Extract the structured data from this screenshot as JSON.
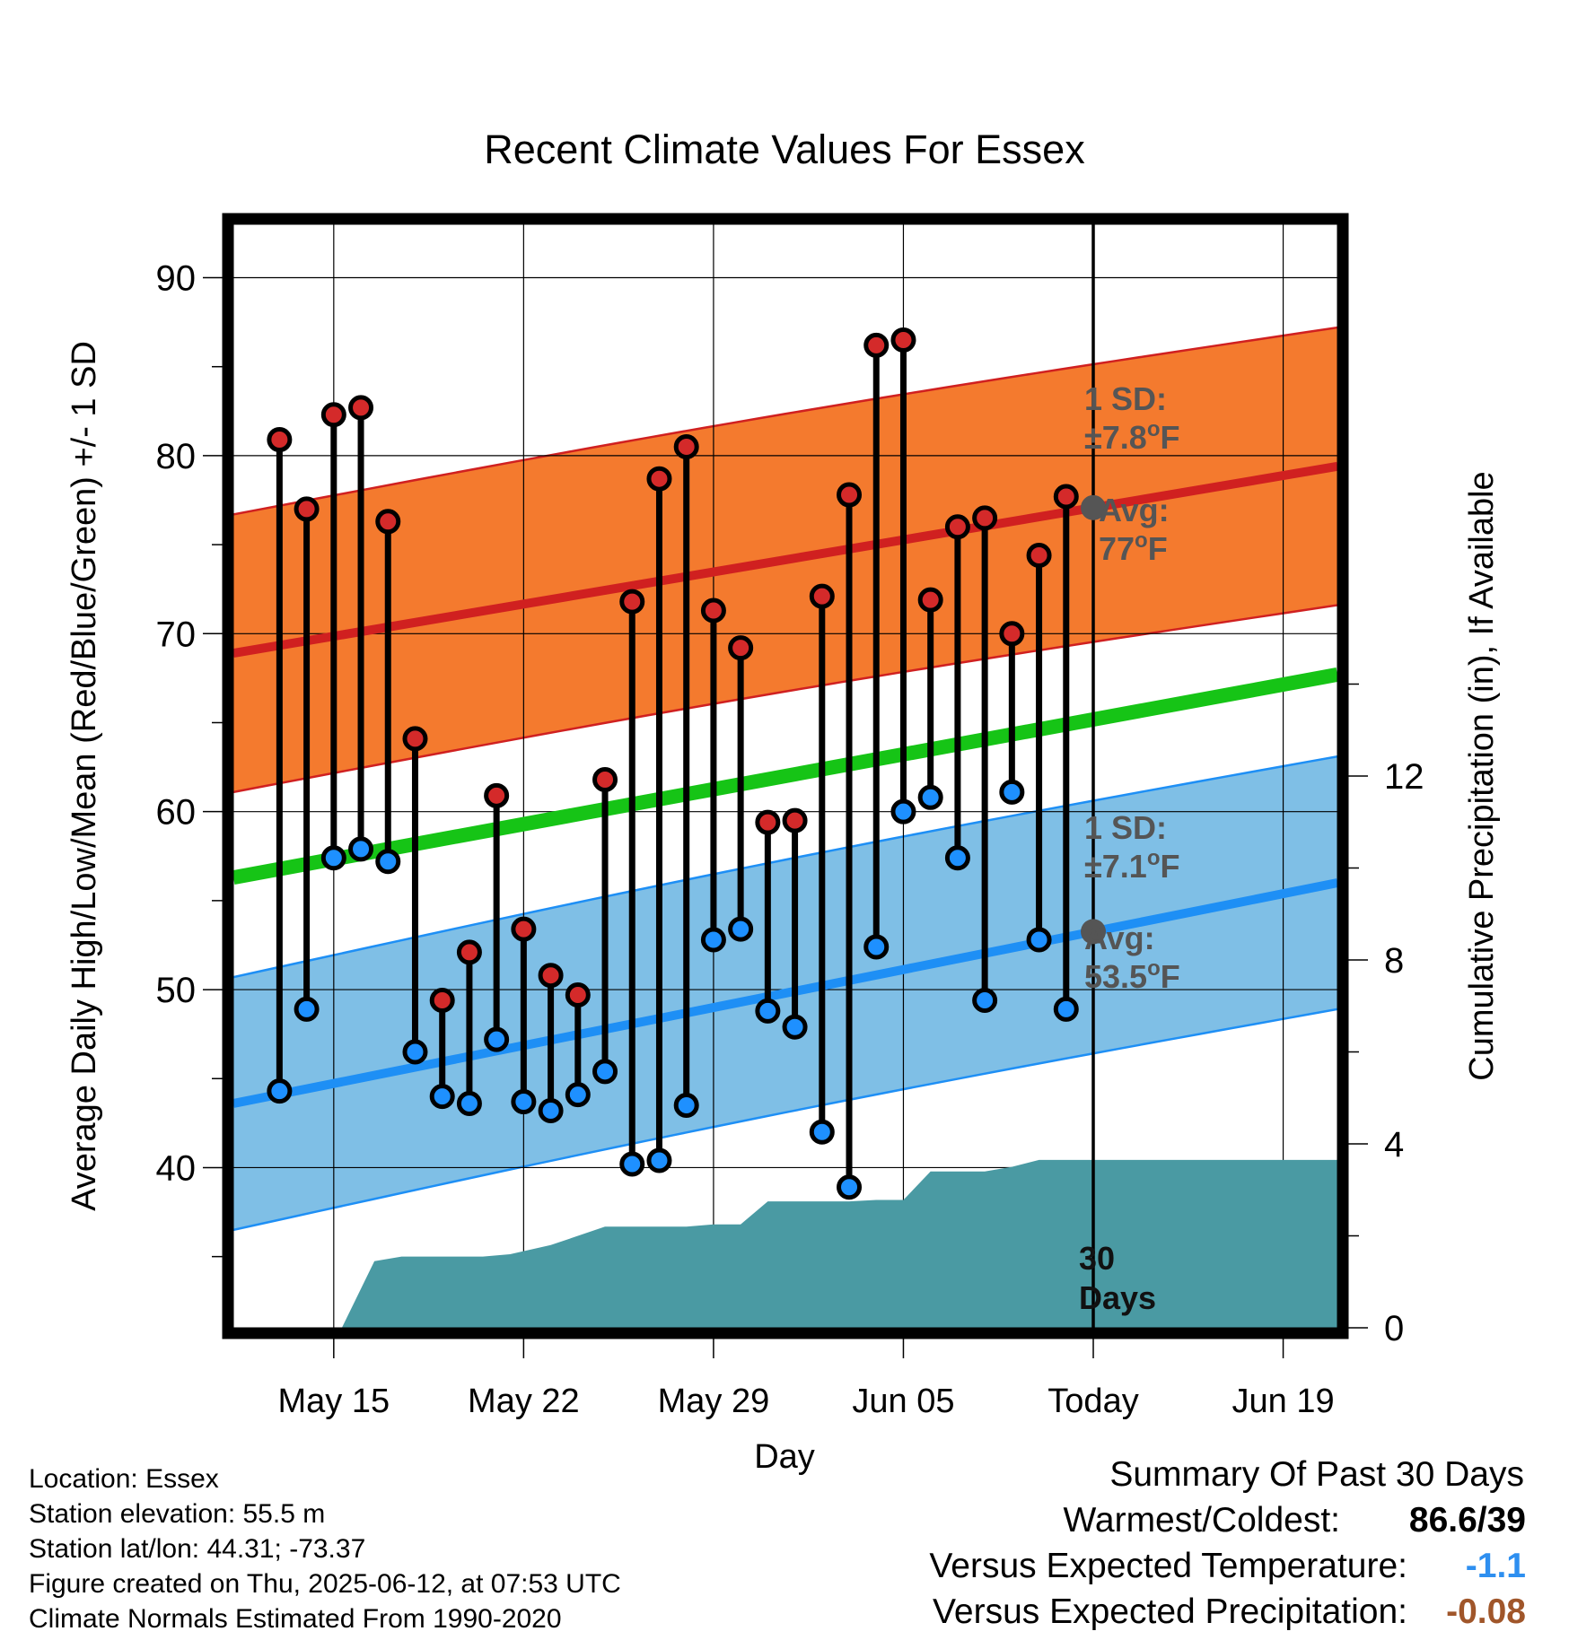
{
  "chart_data": {
    "type": "line",
    "title": "Recent Climate Values For Essex",
    "xlabel": "Day",
    "ylabel": "Average Daily High/Low/Mean (Red/Blue/Green) +/- 1 SD",
    "y2label": "Cumulative Precipitation (in), If Available",
    "ylim": [
      31,
      93
    ],
    "y_ticks": [
      40,
      50,
      60,
      70,
      80,
      90
    ],
    "y2lim": [
      0,
      24
    ],
    "y2_ticks": [
      0,
      4,
      8,
      12
    ],
    "grid": true,
    "x_ticks": [
      {
        "day": 3,
        "label": "May 15"
      },
      {
        "day": 10,
        "label": "May 22"
      },
      {
        "day": 17,
        "label": "May 29"
      },
      {
        "day": 24,
        "label": "Jun 05"
      },
      {
        "day": 31,
        "label": "Today"
      },
      {
        "day": 38,
        "label": "Jun 19"
      }
    ],
    "x_range": [
      -0.7,
      40.0
    ],
    "today_day": 31,
    "days": [
      1,
      2,
      3,
      4,
      5,
      6,
      7,
      8,
      9,
      10,
      11,
      12,
      13,
      14,
      15,
      16,
      17,
      18,
      19,
      20,
      21,
      22,
      23,
      24,
      25,
      26,
      27,
      28,
      29,
      30
    ],
    "highs": [
      80.9,
      77.0,
      82.3,
      82.7,
      76.3,
      64.1,
      49.4,
      52.1,
      60.9,
      53.4,
      50.8,
      49.7,
      61.8,
      71.8,
      78.7,
      80.5,
      71.3,
      69.2,
      59.4,
      59.5,
      72.1,
      77.8,
      86.2,
      86.5,
      71.9,
      76.0,
      76.5,
      70.0,
      74.4,
      77.7
    ],
    "lows": [
      44.3,
      48.9,
      57.4,
      57.9,
      57.2,
      46.5,
      44.0,
      43.6,
      47.2,
      43.7,
      43.2,
      44.1,
      45.4,
      40.2,
      40.4,
      43.5,
      52.8,
      53.4,
      48.8,
      47.9,
      42.0,
      38.9,
      52.4,
      60.0,
      60.8,
      57.4,
      49.4,
      61.1,
      52.8,
      48.9
    ],
    "series": [
      {
        "name": "Avg",
        "kind": "normal-high",
        "x": [
          -0.7,
          40.0
        ],
        "y": [
          68.9,
          79.4
        ],
        "sd": 7.8,
        "color": "#d02020",
        "band_color": "#f47a2e"
      },
      {
        "name": "Avg",
        "kind": "normal-low",
        "x": [
          -0.7,
          40.0
        ],
        "y": [
          43.6,
          56.0
        ],
        "sd": 7.1,
        "color": "#1e8ff5",
        "band_color": "#7fbfe6"
      },
      {
        "kind": "normal-mean",
        "x": [
          -0.7,
          40.0
        ],
        "y": [
          56.3,
          67.7
        ],
        "color": "#16c416"
      }
    ],
    "precip_x": [
      -0.7,
      3.3,
      4.5,
      5.5,
      7.0,
      8.5,
      9.5,
      11.0,
      13.0,
      15.0,
      16.0,
      17.0,
      18.0,
      19.0,
      20.0,
      22.0,
      23.0,
      24.0,
      25.0,
      26.0,
      27.0,
      28.0,
      29.0,
      30.0,
      31.0,
      40.0
    ],
    "precip_y": [
      0,
      0,
      1.45,
      1.55,
      1.55,
      1.55,
      1.6,
      1.8,
      2.2,
      2.2,
      2.2,
      2.25,
      2.25,
      2.75,
      2.75,
      2.75,
      2.78,
      2.78,
      3.4,
      3.4,
      3.4,
      3.5,
      3.65,
      3.65,
      3.65,
      3.65
    ],
    "precip_color": "#4a9aa3",
    "annotations": {
      "high_sd": "1 SD:",
      "high_sd_value": "±7.8",
      "high_avg": "Avg:",
      "high_avg_value": "77",
      "low_sd": "1 SD:",
      "low_sd_value": "±7.1",
      "low_avg": "Avg:",
      "low_avg_value": "53.5",
      "deg_unit_sup": "o",
      "deg_unit": "F",
      "window_num": "30",
      "window_word": "Days"
    }
  },
  "footer": {
    "location": "Location: Essex",
    "elevation": "Station elevation: 55.5 m",
    "latlon": "Station lat/lon: 44.31; -73.37",
    "created": "Figure created on Thu, 2025-06-12, at 07:53 UTC",
    "normals": "Climate Normals Estimated From 1990-2020"
  },
  "summary": {
    "heading": "Summary Of Past 30 Days",
    "warm_cold_label": "Warmest/Coldest:",
    "warm_cold_value": "86.6/39",
    "temp_label": "Versus Expected Temperature:",
    "temp_value": "-1.1",
    "temp_color": "#2e8ff0",
    "precip_label": "Versus Expected Precipitation:",
    "precip_value": "-0.08",
    "precip_color": "#a0562a"
  }
}
